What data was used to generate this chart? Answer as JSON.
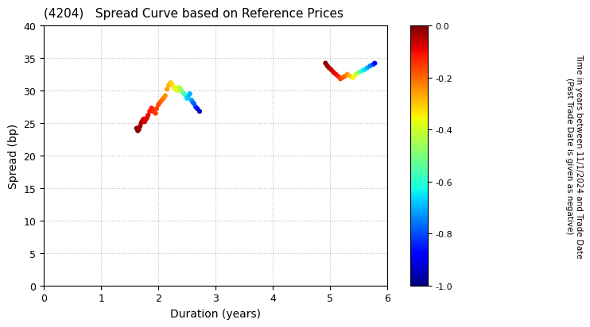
{
  "title": "(4204)   Spread Curve based on Reference Prices",
  "xlabel": "Duration (years)",
  "ylabel": "Spread (bp)",
  "xlim": [
    0,
    6
  ],
  "ylim": [
    0,
    40
  ],
  "xticks": [
    0,
    1,
    2,
    3,
    4,
    5,
    6
  ],
  "yticks": [
    0,
    5,
    10,
    15,
    20,
    25,
    30,
    35,
    40
  ],
  "colorbar_label": "Time in years between 11/1/2024 and Trade Date\n(Past Trade Date is given as negative)",
  "cbar_ticks": [
    0.0,
    -0.2,
    -0.4,
    -0.6,
    -0.8,
    -1.0
  ],
  "cluster1": {
    "duration": [
      1.62,
      1.64,
      1.66,
      1.68,
      1.7,
      1.72,
      1.74,
      1.76,
      1.78,
      1.8,
      1.82,
      1.85,
      1.88,
      1.9,
      1.92,
      1.95,
      1.97,
      2.0,
      2.03,
      2.06,
      2.09,
      2.12,
      2.15,
      2.18,
      2.21,
      2.24,
      2.27,
      2.3,
      2.33,
      2.36,
      2.39,
      2.42,
      2.45,
      2.48,
      2.5,
      2.52,
      2.55,
      2.58,
      2.6,
      2.62,
      2.65,
      2.68,
      2.72
    ],
    "spread": [
      24.2,
      23.8,
      24.0,
      24.5,
      25.0,
      25.3,
      25.6,
      25.2,
      25.5,
      25.8,
      26.2,
      26.8,
      27.3,
      26.8,
      27.0,
      26.5,
      27.2,
      27.8,
      28.2,
      28.5,
      28.8,
      29.2,
      30.2,
      30.8,
      31.2,
      31.0,
      30.5,
      30.2,
      30.0,
      30.5,
      30.2,
      29.8,
      29.5,
      29.2,
      28.8,
      29.0,
      29.5,
      28.5,
      28.2,
      28.0,
      27.5,
      27.2,
      26.8
    ],
    "color_val": [
      -0.0,
      -0.01,
      -0.02,
      -0.03,
      -0.04,
      -0.05,
      -0.06,
      -0.07,
      -0.08,
      -0.09,
      -0.1,
      -0.11,
      -0.12,
      -0.13,
      -0.14,
      -0.15,
      -0.16,
      -0.17,
      -0.18,
      -0.2,
      -0.22,
      -0.24,
      -0.26,
      -0.28,
      -0.3,
      -0.32,
      -0.34,
      -0.36,
      -0.38,
      -0.4,
      -0.45,
      -0.5,
      -0.55,
      -0.6,
      -0.65,
      -0.68,
      -0.7,
      -0.72,
      -0.74,
      -0.78,
      -0.82,
      -0.88,
      -0.95
    ]
  },
  "cluster2": {
    "duration": [
      4.92,
      4.95,
      4.98,
      5.02,
      5.06,
      5.1,
      5.14,
      5.18,
      5.22,
      5.26,
      5.3,
      5.35,
      5.4,
      5.45,
      5.5,
      5.55,
      5.6,
      5.65,
      5.7,
      5.75,
      5.78
    ],
    "spread": [
      34.2,
      33.8,
      33.5,
      33.2,
      32.8,
      32.5,
      32.2,
      31.8,
      32.0,
      32.2,
      32.5,
      32.2,
      32.0,
      32.5,
      32.8,
      33.0,
      33.2,
      33.5,
      33.8,
      34.0,
      34.2
    ],
    "color_val": [
      -0.0,
      -0.02,
      -0.04,
      -0.06,
      -0.08,
      -0.1,
      -0.12,
      -0.15,
      -0.18,
      -0.2,
      -0.25,
      -0.3,
      -0.35,
      -0.4,
      -0.5,
      -0.6,
      -0.65,
      -0.7,
      -0.75,
      -0.8,
      -0.88
    ]
  },
  "background_color": "#ffffff",
  "grid_color": "#bbbbbb",
  "marker_size": 20
}
